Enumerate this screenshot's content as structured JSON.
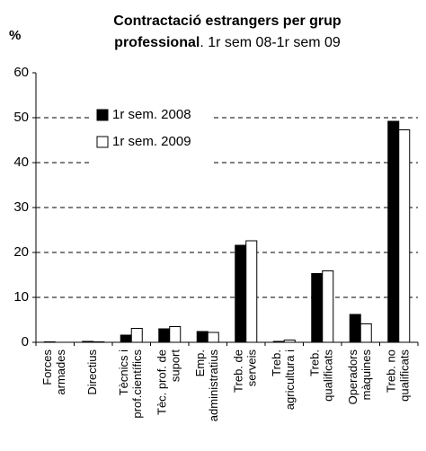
{
  "chart_data": {
    "type": "bar",
    "title": "Contractació estrangers per grup professional",
    "subtitle": ". 1r sem 08-1r sem 09",
    "y_label": "%",
    "categories": [
      [
        "Forces",
        "armades"
      ],
      [
        "Directius"
      ],
      [
        "Tècnics i",
        "prof.científics"
      ],
      [
        "Tèc. prof. de",
        "suport"
      ],
      [
        "Emp.",
        "administratius"
      ],
      [
        "Treb. de",
        "serveis"
      ],
      [
        "Treb.",
        "agricultura i"
      ],
      [
        "Treb.",
        "qualificats"
      ],
      [
        "Operadors",
        "màquines"
      ],
      [
        "Treb. no",
        "qualificats"
      ]
    ],
    "series": [
      {
        "name": "1r sem. 2008",
        "color": "#000000",
        "values": [
          0.1,
          0.2,
          1.6,
          3.0,
          2.4,
          21.6,
          0.2,
          15.3,
          6.2,
          49.2
        ]
      },
      {
        "name": "1r sem. 2009",
        "color": "#ffffff",
        "values": [
          0.0,
          0.1,
          3.1,
          3.5,
          2.2,
          22.6,
          0.5,
          15.9,
          4.1,
          47.3
        ]
      }
    ],
    "ylim": [
      0,
      60
    ],
    "yticks": [
      0,
      10,
      20,
      30,
      40,
      50,
      60
    ],
    "grid": true,
    "legend": "upper left"
  }
}
